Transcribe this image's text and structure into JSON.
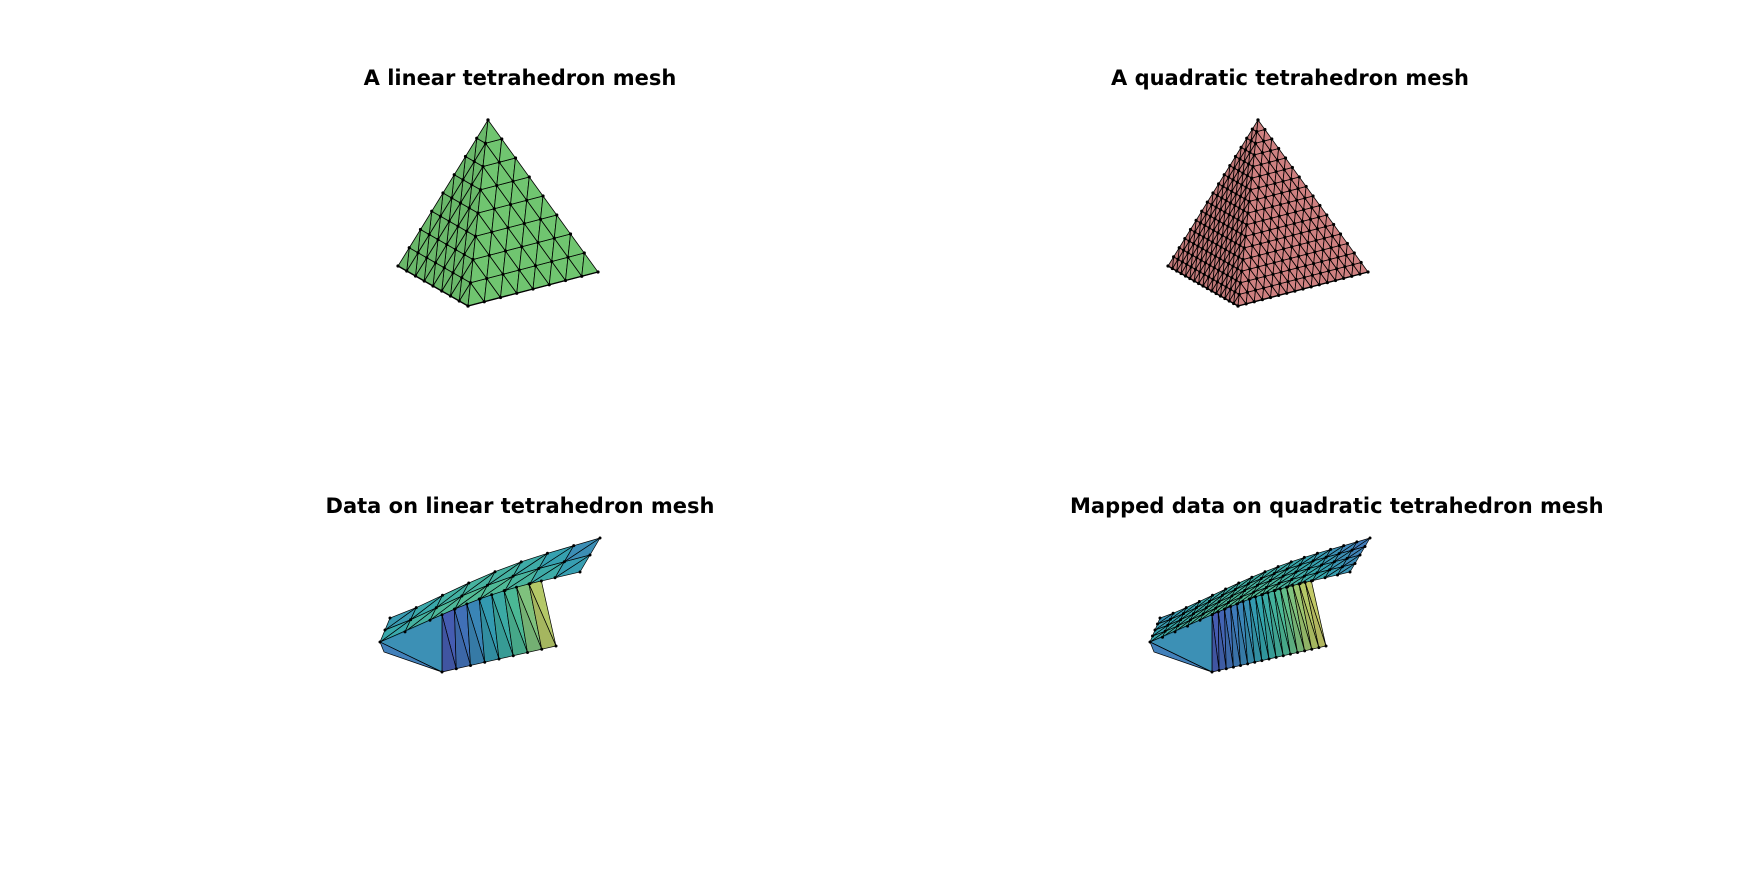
{
  "figure": {
    "panels": [
      {
        "title": "A linear tetrahedron mesh",
        "shape": "pyramid",
        "fill_color": "#5cbd5c",
        "subdivisions": 8,
        "colored_by_data": false
      },
      {
        "title": "A quadratic tetrahedron mesh",
        "shape": "pyramid",
        "fill_color": "#c87070",
        "subdivisions": 16,
        "colored_by_data": false
      },
      {
        "title": "Data on linear tetrahedron mesh",
        "shape": "deformed-slab",
        "colormap": [
          "#3b2fa0",
          "#2e6db4",
          "#1f9aa6",
          "#3fb48a",
          "#a8c35a",
          "#d9c65a"
        ],
        "subdivisions": 8,
        "colored_by_data": true
      },
      {
        "title": "Mapped data on quadratic tetrahedron mesh",
        "shape": "deformed-slab",
        "colormap": [
          "#3b2fa0",
          "#2e6db4",
          "#1f9aa6",
          "#3fb48a",
          "#a8c35a",
          "#d9c65a"
        ],
        "subdivisions": 16,
        "colored_by_data": true
      }
    ],
    "colors": {
      "edge": "#000000",
      "node": "#000000",
      "background": "#ffffff"
    }
  }
}
